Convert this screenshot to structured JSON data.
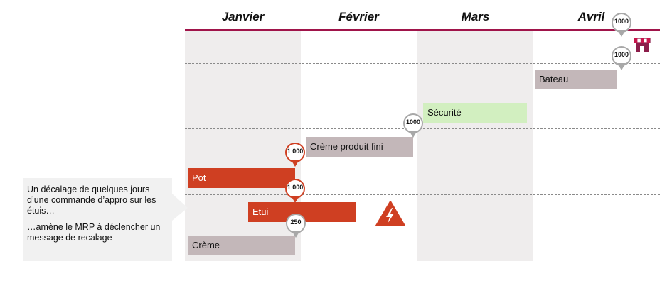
{
  "months": [
    "Janvier",
    "Février",
    "Mars",
    "Avril"
  ],
  "bars": {
    "bateau": "Bateau",
    "securite": "Sécurité",
    "creme_produit_fini": "Crème produit fini",
    "pot": "Pot",
    "etui": "Etui",
    "creme": "Crème"
  },
  "pins": {
    "avril_top": "1000",
    "bateau": "1000",
    "creme_produit_fini": "1000",
    "pot": "1 000",
    "etui": "1 000",
    "creme": "250"
  },
  "callout": {
    "line1": "Un décalage de quelques jours d’une commande d’appro sur les étuis…",
    "line2": "…amène le MRP à déclencher un message de recalage"
  },
  "colors": {
    "accent_line": "#a0144a",
    "bar_grey": "#c3b7b9",
    "bar_green": "#d2efc0",
    "bar_red": "#cf3f22"
  },
  "icons": {
    "warning": "warning-lightning-icon",
    "shop": "shop-icon"
  }
}
